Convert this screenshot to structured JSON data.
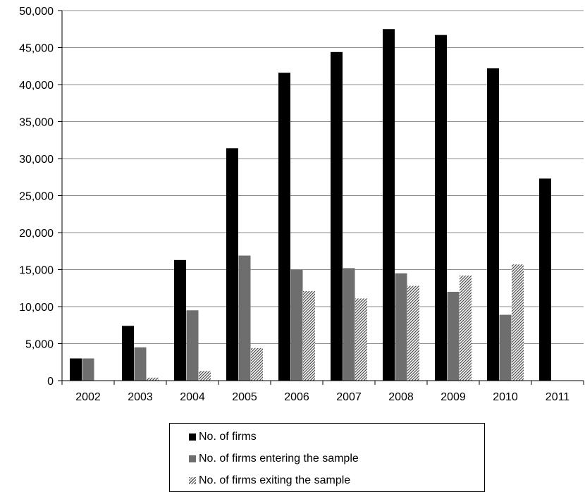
{
  "chart_data": {
    "type": "bar",
    "title": "",
    "xlabel": "",
    "ylabel": "",
    "categories": [
      "2002",
      "2003",
      "2004",
      "2005",
      "2006",
      "2007",
      "2008",
      "2009",
      "2010",
      "2011"
    ],
    "ylim": [
      0,
      50000
    ],
    "yticks": [
      0,
      5000,
      10000,
      15000,
      20000,
      25000,
      30000,
      35000,
      40000,
      45000,
      50000
    ],
    "ytick_labels": [
      "0",
      "5,000",
      "10,000",
      "15,000",
      "20,000",
      "25,000",
      "30,000",
      "35,000",
      "40,000",
      "45,000",
      "50,000"
    ],
    "grid": "horizontal",
    "legend_position": "bottom",
    "series": [
      {
        "name": "No. of firms",
        "fill": "solid",
        "color": "#000000",
        "values": [
          3000,
          7400,
          16300,
          31400,
          41600,
          44400,
          47500,
          46700,
          42200,
          27300
        ]
      },
      {
        "name": "No. of firms entering the sample",
        "fill": "solid",
        "color": "#6e6e6e",
        "values": [
          3000,
          4500,
          9500,
          16900,
          15000,
          15200,
          14500,
          12000,
          8900,
          0
        ]
      },
      {
        "name": "No. of firms exiting the sample",
        "fill": "hatch",
        "color": "#5a5a5a",
        "values": [
          0,
          400,
          1300,
          4400,
          12100,
          11100,
          12800,
          14200,
          15700,
          0
        ]
      }
    ]
  }
}
